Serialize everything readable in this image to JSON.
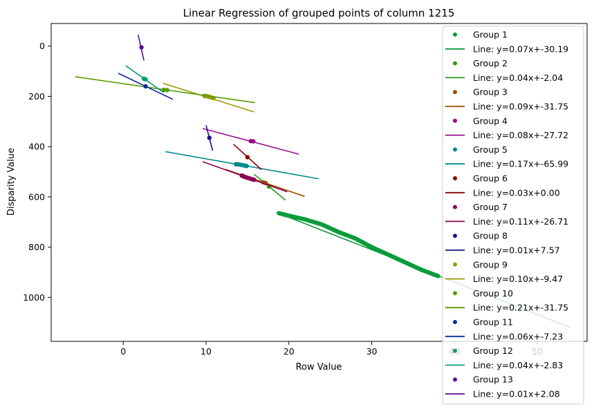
{
  "chart_data": {
    "type": "scatter",
    "title": "Linear Regression of grouped points of column 1215",
    "xlabel": "Row Value",
    "ylabel": "Disparity Value",
    "xlim": [
      -8.7,
      56.0
    ],
    "ylim": [
      1175,
      -90
    ],
    "y_inverted": true,
    "x_ticks": [
      0,
      10,
      20,
      30,
      40,
      50
    ],
    "y_ticks": [
      0,
      200,
      400,
      600,
      800,
      1000
    ],
    "grid": false,
    "legend_position": "upper right",
    "groups": [
      {
        "name": "Group 1",
        "line_label": "Line: y=0.07x+-30.19",
        "color": "#0a9c3a",
        "points": [
          [
            18.8,
            665
          ],
          [
            20,
            675
          ],
          [
            22,
            690
          ],
          [
            24,
            710
          ],
          [
            26,
            740
          ],
          [
            28,
            765
          ],
          [
            30,
            800
          ],
          [
            32,
            830
          ],
          [
            34,
            860
          ],
          [
            36,
            890
          ],
          [
            38,
            915
          ]
        ],
        "line": [
          [
            18.5,
            662
          ],
          [
            54,
            1120
          ]
        ]
      },
      {
        "name": "Group 2",
        "line_label": "Line: y=0.04x+-2.04",
        "color": "#2a9a12",
        "points": [
          [
            17.6,
            559
          ]
        ],
        "line": [
          [
            15.8,
            510
          ],
          [
            19.6,
            613
          ]
        ]
      },
      {
        "name": "Group 3",
        "line_label": "Line: y=0.09x+-31.75",
        "color": "#9a5000",
        "points": [
          [
            17.2,
            545
          ],
          [
            16.9,
            542
          ]
        ],
        "line": [
          [
            12.3,
            490
          ],
          [
            21.9,
            598
          ]
        ]
      },
      {
        "name": "Group 4",
        "line_label": "Line: y=0.08x+-27.72",
        "color": "#9a0a8a",
        "points": [
          [
            15.4,
            378
          ],
          [
            15.7,
            379
          ]
        ],
        "line": [
          [
            9.6,
            328
          ],
          [
            21.2,
            430
          ]
        ]
      },
      {
        "name": "Group 5",
        "line_label": "Line: y=0.17x+-65.99",
        "color": "#008a8a",
        "points": [
          [
            13.6,
            470
          ],
          [
            14.0,
            471
          ],
          [
            14.9,
            477
          ]
        ],
        "line": [
          [
            5.1,
            420
          ],
          [
            23.6,
            528
          ]
        ]
      },
      {
        "name": "Group 6",
        "line_label": "Line: y=0.03x+0.00",
        "color": "#8a0000",
        "points": [
          [
            15.0,
            442
          ]
        ],
        "line": [
          [
            13.3,
            390
          ],
          [
            16.7,
            492
          ]
        ]
      },
      {
        "name": "Group 7",
        "line_label": "Line: y=0.11x+-26.71",
        "color": "#8a0050",
        "points": [
          [
            14.3,
            515
          ],
          [
            14.5,
            518
          ],
          [
            14.8,
            522
          ],
          [
            15.8,
            532
          ]
        ],
        "line": [
          [
            9.6,
            460
          ],
          [
            19.8,
            580
          ]
        ]
      },
      {
        "name": "Group 8",
        "line_label": "Line: y=0.01x+7.57",
        "color": "#14148a",
        "points": [
          [
            10.4,
            365
          ]
        ],
        "line": [
          [
            10.0,
            315
          ],
          [
            10.8,
            416
          ]
        ]
      },
      {
        "name": "Group 9",
        "line_label": "Line: y=0.10x+-9.47",
        "color": "#9a9a00",
        "points": [
          [
            9.8,
            198
          ],
          [
            10.2,
            200
          ],
          [
            10.5,
            203
          ],
          [
            10.9,
            207
          ]
        ],
        "line": [
          [
            4.8,
            148
          ],
          [
            15.8,
            262
          ]
        ]
      },
      {
        "name": "Group 10",
        "line_label": "Line: y=0.21x+-31.75",
        "color": "#5a9a00",
        "points": [
          [
            4.9,
            174
          ],
          [
            5.3,
            175
          ]
        ],
        "line": [
          [
            -5.8,
            122
          ],
          [
            15.9,
            225
          ]
        ]
      },
      {
        "name": "Group 11",
        "line_label": "Line: y=0.06x+-7.23",
        "color": "#0a2a9a",
        "points": [
          [
            2.7,
            160
          ]
        ],
        "line": [
          [
            -0.6,
            108
          ],
          [
            6.0,
            212
          ]
        ]
      },
      {
        "name": "Group 12",
        "line_label": "Line: y=0.04x+-2.83",
        "color": "#0a9a7a",
        "points": [
          [
            2.5,
            130
          ],
          [
            2.7,
            132
          ]
        ],
        "line": [
          [
            0.3,
            78
          ],
          [
            4.9,
            185
          ]
        ]
      },
      {
        "name": "Group 13",
        "line_label": "Line: y=0.01x+2.08",
        "color": "#5a0a9a",
        "points": [
          [
            2.2,
            5
          ]
        ],
        "line": [
          [
            1.8,
            -45
          ],
          [
            2.5,
            57
          ]
        ]
      }
    ]
  }
}
